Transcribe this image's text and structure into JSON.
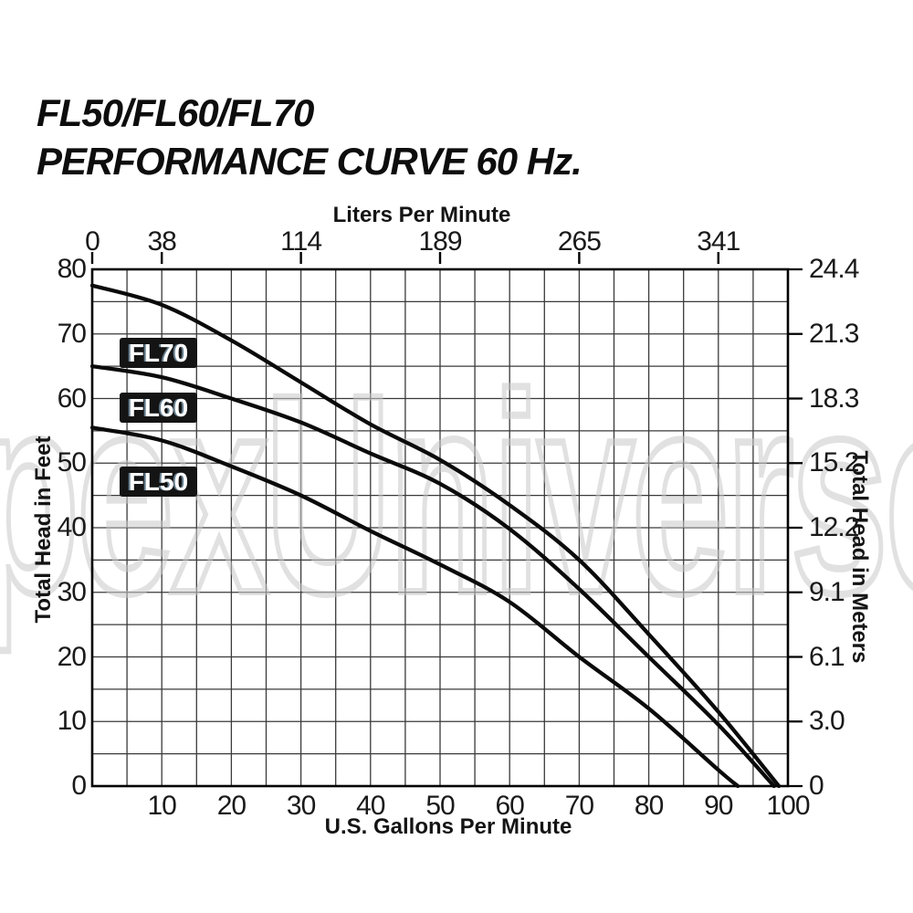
{
  "title": {
    "line1": "FL50/FL60/FL70",
    "line2": "PERFORMANCE CURVE 60 Hz."
  },
  "watermark": "pexUniverse",
  "colors": {
    "curve": "#0b0b0b",
    "grid": "#3a3a3a",
    "border": "#000000",
    "label_box_bg": "#141414",
    "label_box_text": "#ffffff",
    "watermark_stroke": "#c9c9c9",
    "background": "#ffffff"
  },
  "chart_data": {
    "type": "line",
    "title": "FL50/FL60/FL70 PERFORMANCE CURVE 60 Hz.",
    "grid": {
      "on": true,
      "minor_step_gpm": 5,
      "minor_step_ft": 5
    },
    "axes": {
      "top": {
        "label": "Liters Per Minute",
        "ticks": [
          {
            "gpm": 0,
            "label": "0"
          },
          {
            "gpm": 10,
            "label": "38"
          },
          {
            "gpm": 30,
            "label": "114"
          },
          {
            "gpm": 50,
            "label": "189"
          },
          {
            "gpm": 70,
            "label": "265"
          },
          {
            "gpm": 90,
            "label": "341"
          }
        ]
      },
      "bottom": {
        "label": "U.S. Gallons Per Minute",
        "range": [
          0,
          100
        ],
        "ticks": [
          10,
          20,
          30,
          40,
          50,
          60,
          70,
          80,
          90,
          100
        ]
      },
      "left": {
        "label": "Total Head in Feet",
        "range": [
          0,
          80
        ],
        "ticks": [
          0,
          10,
          20,
          30,
          40,
          50,
          60,
          70,
          80
        ]
      },
      "right": {
        "label": "Total Head in Meters",
        "ticks": [
          {
            "ft": 0,
            "label": "0"
          },
          {
            "ft": 10,
            "label": "3.0"
          },
          {
            "ft": 20,
            "label": "6.1"
          },
          {
            "ft": 30,
            "label": "9.1"
          },
          {
            "ft": 40,
            "label": "12.2"
          },
          {
            "ft": 50,
            "label": "15.2"
          },
          {
            "ft": 60,
            "label": "18.3"
          },
          {
            "ft": 70,
            "label": "21.3"
          },
          {
            "ft": 80,
            "label": "24.4"
          }
        ]
      }
    },
    "series": [
      {
        "name": "FL70",
        "points": [
          [
            0,
            77.5
          ],
          [
            10,
            74.5
          ],
          [
            20,
            69
          ],
          [
            30,
            62.5
          ],
          [
            40,
            56
          ],
          [
            50,
            50.5
          ],
          [
            60,
            43.5
          ],
          [
            70,
            35
          ],
          [
            80,
            23.5
          ],
          [
            90,
            11.5
          ],
          [
            98.7,
            0
          ]
        ]
      },
      {
        "name": "FL60",
        "points": [
          [
            0,
            65
          ],
          [
            10,
            63.3
          ],
          [
            20,
            60
          ],
          [
            30,
            56.3
          ],
          [
            40,
            51.5
          ],
          [
            50,
            46.8
          ],
          [
            60,
            39.8
          ],
          [
            70,
            30.5
          ],
          [
            80,
            20
          ],
          [
            90,
            9.5
          ],
          [
            98,
            0
          ]
        ]
      },
      {
        "name": "FL50",
        "points": [
          [
            0,
            55.5
          ],
          [
            10,
            53.5
          ],
          [
            20,
            49.5
          ],
          [
            30,
            45
          ],
          [
            40,
            39.5
          ],
          [
            50,
            34.3
          ],
          [
            60,
            28.5
          ],
          [
            70,
            20
          ],
          [
            80,
            12
          ],
          [
            90,
            2.5
          ],
          [
            92.8,
            0
          ]
        ]
      }
    ]
  }
}
